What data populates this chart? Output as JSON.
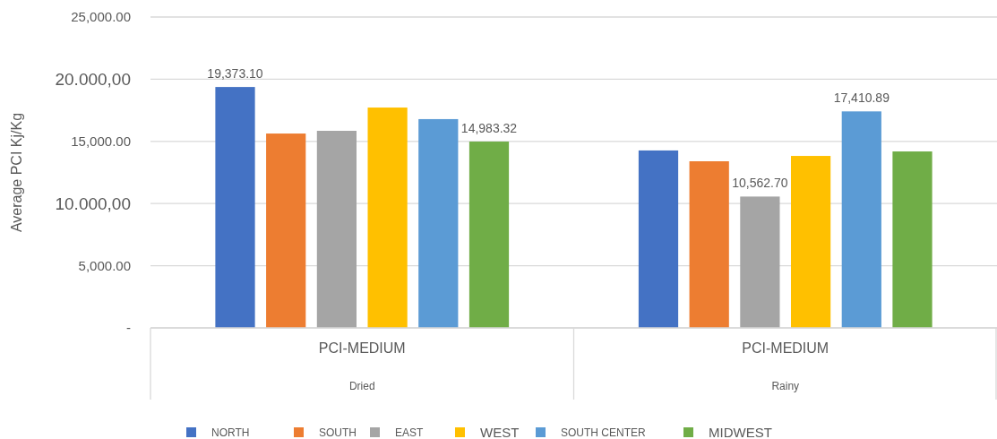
{
  "chart_data": {
    "type": "bar",
    "ylabel": "Average PCI Kj/Kg",
    "categories": [
      "PCI-MEDIUM\nDried",
      "PCI-MEDIUM\nRainy"
    ],
    "series": [
      {
        "name": "NORTH",
        "color": "#4472c4",
        "values": [
          19373.1,
          14270
        ],
        "value_labels": [
          "19,373.10",
          null
        ]
      },
      {
        "name": "SOUTH",
        "color": "#ed7d31",
        "values": [
          15630,
          13400
        ],
        "value_labels": [
          null,
          null
        ]
      },
      {
        "name": "EAST",
        "color": "#a5a5a5",
        "values": [
          15850,
          10562.7
        ],
        "value_labels": [
          null,
          "10,562.70"
        ]
      },
      {
        "name": "WEST",
        "color": "#ffc000",
        "values": [
          17720,
          13830
        ],
        "value_labels": [
          null,
          null
        ]
      },
      {
        "name": "SOUTH CENTER",
        "color": "#5b9bd5",
        "values": [
          16790,
          17410.89
        ],
        "value_labels": [
          null,
          "17,410.89"
        ]
      },
      {
        "name": "MIDWEST",
        "color": "#70ad47",
        "values": [
          14983.32,
          14190
        ],
        "value_labels": [
          "14,983.32",
          null
        ]
      }
    ],
    "ylim": [
      0,
      25000
    ],
    "yticks": [
      {
        "value": 0,
        "label": "-"
      },
      {
        "value": 5000,
        "label": "5,000.00"
      },
      {
        "value": 10000,
        "label": "10.000,00"
      },
      {
        "value": 15000,
        "label": "15,000.00"
      },
      {
        "value": 20000,
        "label": "20.000,00"
      },
      {
        "value": 25000,
        "label": "25,000.00"
      }
    ],
    "grid": "y",
    "legend": "bottom"
  }
}
